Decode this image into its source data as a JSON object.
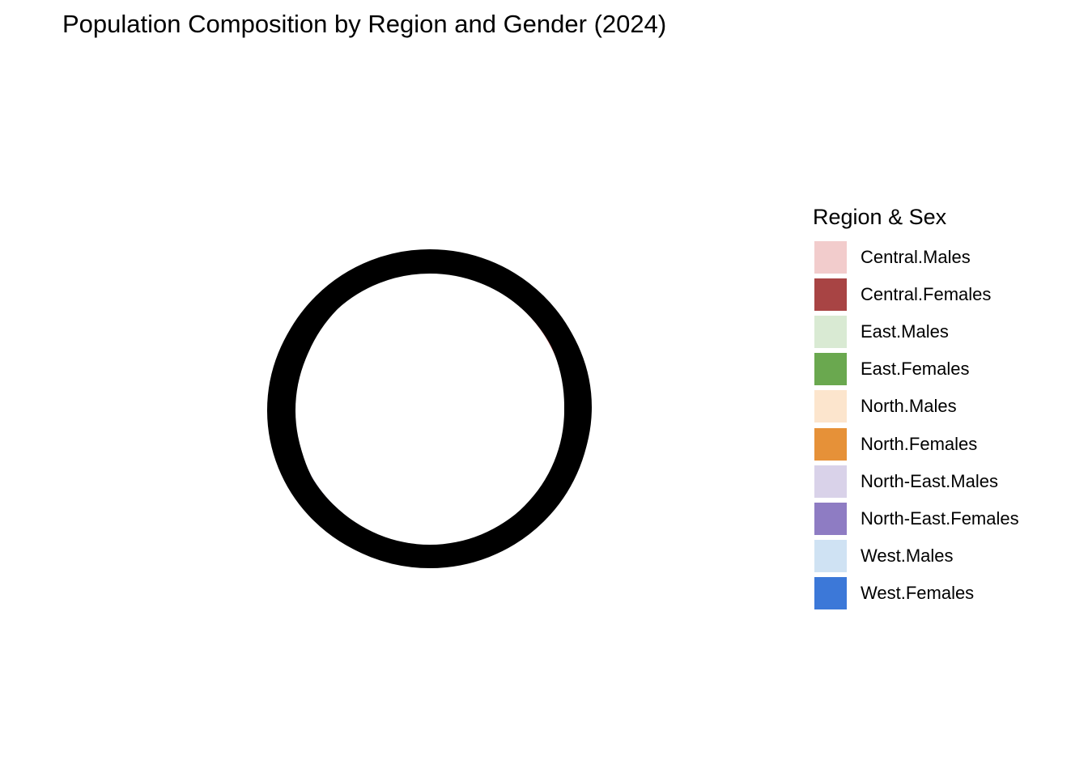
{
  "chart_data": {
    "type": "pie",
    "title": "Population Composition by Region and Gender (2024)",
    "legend": {
      "title": "Region & Sex",
      "placement": "right"
    },
    "slices": [
      {
        "label": "Central.Males",
        "color": "#f2cccc"
      },
      {
        "label": "Central.Females",
        "color": "#a84444"
      },
      {
        "label": "East.Males",
        "color": "#d9ead3"
      },
      {
        "label": "East.Females",
        "color": "#6aa84f"
      },
      {
        "label": "North.Males",
        "color": "#fce5cd"
      },
      {
        "label": "North.Females",
        "color": "#e69138"
      },
      {
        "label": "North-East.Males",
        "color": "#d9d2e9"
      },
      {
        "label": "North-East.Females",
        "color": "#8e7cc3"
      },
      {
        "label": "West.Males",
        "color": "#cfe2f3"
      },
      {
        "label": "West.Females",
        "color": "#3c78d8"
      }
    ],
    "ring_stroke_color": "#000000",
    "grid": false
  }
}
